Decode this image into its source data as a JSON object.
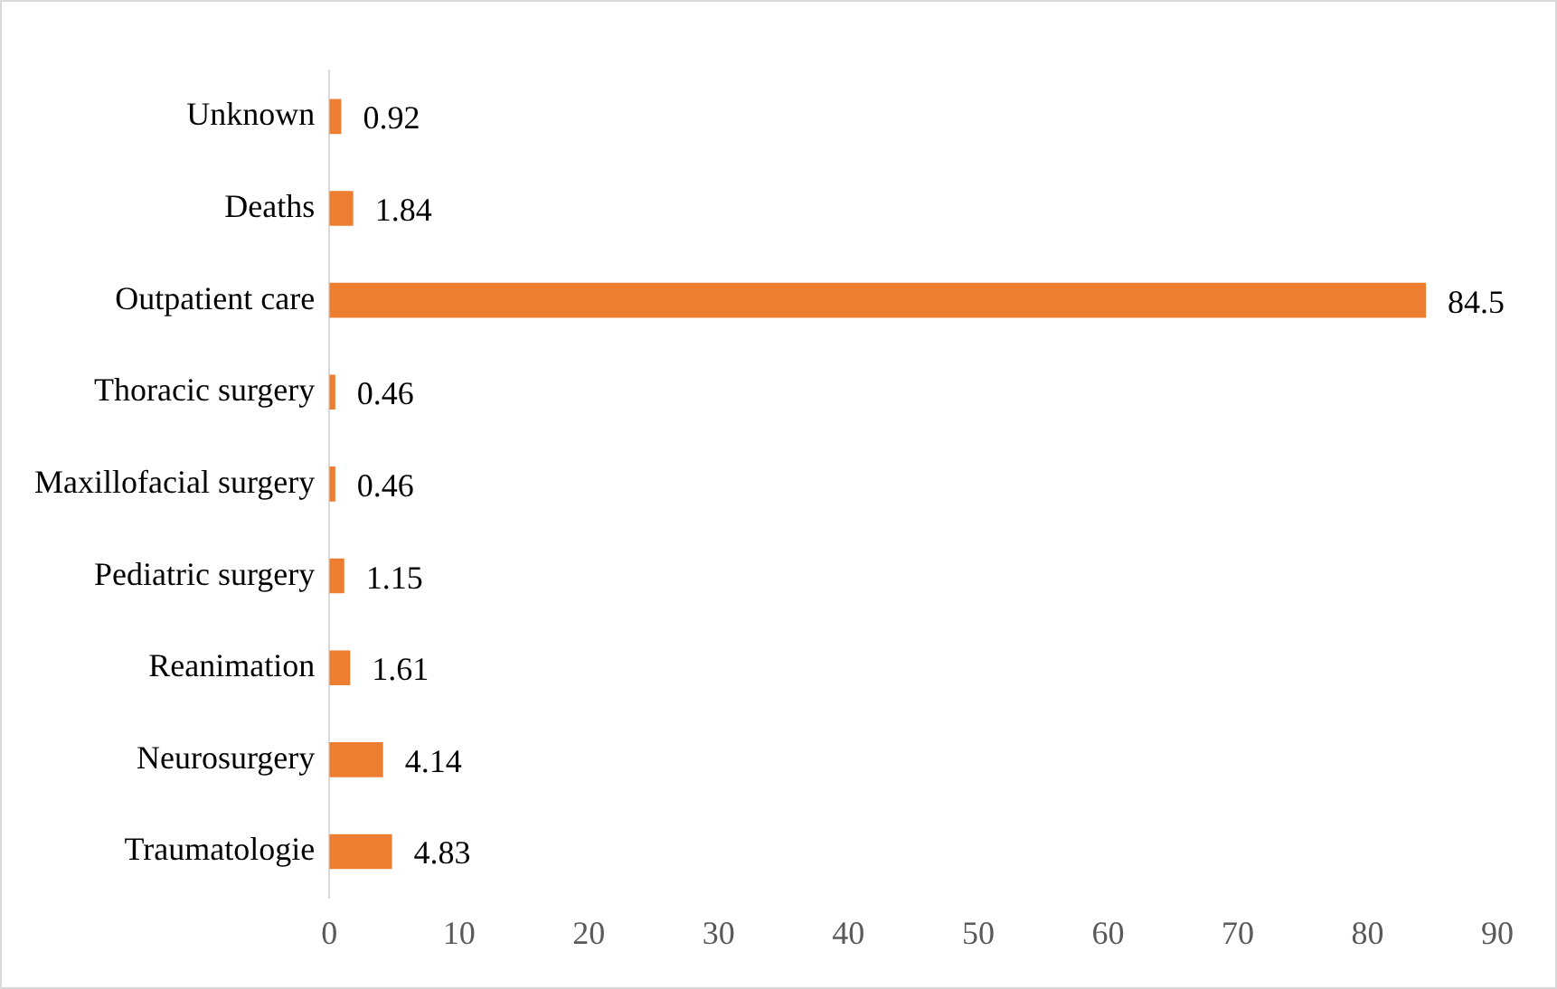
{
  "chart_data": {
    "type": "bar",
    "orientation": "horizontal",
    "categories": [
      "Unknown",
      "Deaths",
      "Outpatient care",
      "Thoracic surgery",
      "Maxillofacial surgery",
      "Pediatric surgery",
      "Reanimation",
      "Neurosurgery",
      "Traumatologie"
    ],
    "values": [
      0.92,
      1.84,
      84.5,
      0.46,
      0.46,
      1.15,
      1.61,
      4.14,
      4.83
    ],
    "color": "#ed7d31",
    "xlim": [
      0,
      90
    ],
    "xticks": [
      0,
      10,
      20,
      30,
      40,
      50,
      60,
      70,
      80,
      90
    ],
    "grid": false,
    "legend": false,
    "data_labels": true
  }
}
